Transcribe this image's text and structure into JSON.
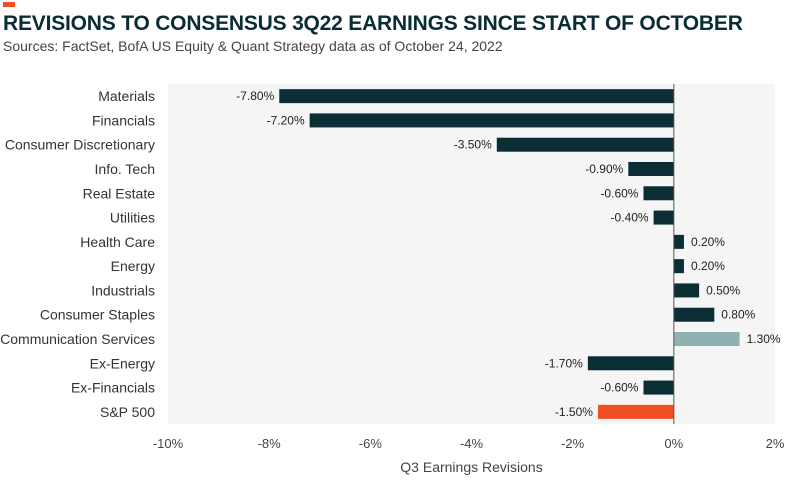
{
  "header": {
    "title": "REVISIONS TO CONSENSUS 3Q22 EARNINGS SINCE START OF OCTOBER",
    "subtitle": "Sources: FactSet, BofA US Equity & Quant Strategy data as of October 24, 2022"
  },
  "colors": {
    "accent": "#f04e23",
    "bar_default": "#0b2e35",
    "bar_highlight": "#8fb1b1",
    "plot_background": "#f5f5f5",
    "zero_line": "#555555"
  },
  "chart_data": {
    "type": "bar",
    "orientation": "horizontal",
    "categories": [
      "Materials",
      "Financials",
      "Consumer Discretionary",
      "Info. Tech",
      "Real Estate",
      "Utilities",
      "Health Care",
      "Energy",
      "Industrials",
      "Consumer Staples",
      "Communication Services",
      "Ex-Energy",
      "Ex-Financials",
      "S&P 500"
    ],
    "values": [
      -7.8,
      -7.2,
      -3.5,
      -0.9,
      -0.6,
      -0.4,
      0.2,
      0.2,
      0.5,
      0.8,
      1.3,
      -1.7,
      -0.6,
      -1.5
    ],
    "data_labels": [
      "-7.80%",
      "-7.20%",
      "-3.50%",
      "-0.90%",
      "-0.60%",
      "-0.40%",
      "0.20%",
      "0.20%",
      "0.50%",
      "0.80%",
      "1.30%",
      "-1.70%",
      "-0.60%",
      "-1.50%"
    ],
    "bar_colors": [
      "#0b2e35",
      "#0b2e35",
      "#0b2e35",
      "#0b2e35",
      "#0b2e35",
      "#0b2e35",
      "#0b2e35",
      "#0b2e35",
      "#0b2e35",
      "#0b2e35",
      "#8fb1b1",
      "#0b2e35",
      "#0b2e35",
      "#f04e23"
    ],
    "xlim": [
      -10,
      2
    ],
    "x_ticks": [
      -10,
      -8,
      -6,
      -4,
      -2,
      0,
      2
    ],
    "x_tick_labels": [
      "-10%",
      "-8%",
      "-6%",
      "-4%",
      "-2%",
      "0%",
      "2%"
    ],
    "xlabel": "Q3 Earnings Revisions",
    "grid": false,
    "legend": "none"
  }
}
